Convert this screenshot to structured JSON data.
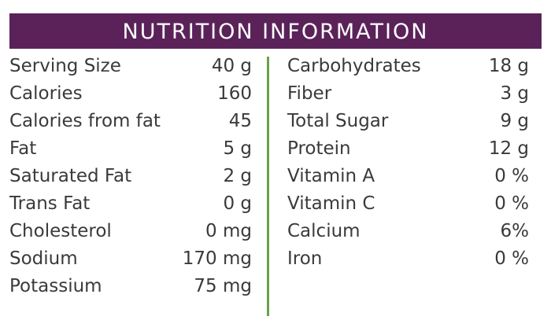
{
  "title": "NUTRITION INFORMATION",
  "colors": {
    "header_bg": "#5b2259",
    "header_text": "#ffffff",
    "divider": "#6aa14a",
    "text": "#3a3a3a"
  },
  "left_column": [
    {
      "label": "Serving Size",
      "value": "40 g"
    },
    {
      "label": "Calories",
      "value": "160"
    },
    {
      "label": "Calories from fat",
      "value": "45"
    },
    {
      "label": "Fat",
      "value": "5 g"
    },
    {
      "label": "Saturated Fat",
      "value": "2 g"
    },
    {
      "label": "Trans Fat",
      "value": "0 g"
    },
    {
      "label": "Cholesterol",
      "value": "0 mg"
    },
    {
      "label": "Sodium",
      "value": "170 mg"
    },
    {
      "label": "Potassium",
      "value": "75 mg"
    }
  ],
  "right_column": [
    {
      "label": "Carbohydrates",
      "value": "18 g"
    },
    {
      "label": "Fiber",
      "value": "3 g"
    },
    {
      "label": "Total Sugar",
      "value": "9 g"
    },
    {
      "label": "Protein",
      "value": "12 g"
    },
    {
      "label": "Vitamin A",
      "value": "0 %"
    },
    {
      "label": "Vitamin C",
      "value": "0 %"
    },
    {
      "label": "Calcium",
      "value": "6%"
    },
    {
      "label": "Iron",
      "value": "0 %"
    }
  ]
}
